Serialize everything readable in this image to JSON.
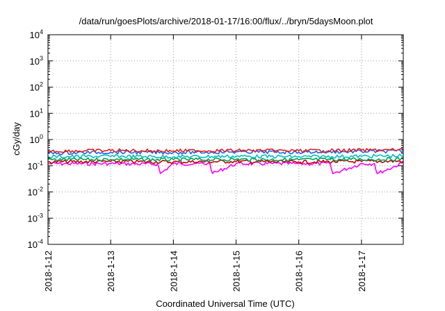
{
  "chart_data": {
    "type": "line",
    "title": "/data/run/goesPlots/archive/2018-01-17/16:00/flux/../bryn/5daysMoon.plot",
    "xlabel": "Coordinated Universal Time (UTC)",
    "ylabel": "cGy/day",
    "yscale": "log",
    "ylim": [
      0.0001,
      10000
    ],
    "xlim": [
      "2018-01-12T00:00",
      "2018-01-17T16:00"
    ],
    "grid": true,
    "legend": "none",
    "y_ticks": [
      {
        "value": 0.0001,
        "base": "10",
        "exp": "-4"
      },
      {
        "value": 0.001,
        "base": "10",
        "exp": "-3"
      },
      {
        "value": 0.01,
        "base": "10",
        "exp": "-2"
      },
      {
        "value": 0.1,
        "base": "10",
        "exp": "-1"
      },
      {
        "value": 1,
        "base": "10",
        "exp": "0"
      },
      {
        "value": 10,
        "base": "10",
        "exp": "1"
      },
      {
        "value": 100,
        "base": "10",
        "exp": "2"
      },
      {
        "value": 1000,
        "base": "10",
        "exp": "3"
      },
      {
        "value": 10000,
        "base": "10",
        "exp": "4"
      }
    ],
    "x_ticks": [
      {
        "value": "2018-01-12",
        "label": "2018-1-12"
      },
      {
        "value": "2018-01-13",
        "label": "2018-1-13"
      },
      {
        "value": "2018-01-14",
        "label": "2018-1-14"
      },
      {
        "value": "2018-01-15",
        "label": "2018-1-15"
      },
      {
        "value": "2018-01-16",
        "label": "2018-1-16"
      },
      {
        "value": "2018-01-17",
        "label": "2018-1-17"
      }
    ],
    "series": [
      {
        "color": "#ff00ff",
        "x": [
          "2018-01-12T00:00",
          "2018-01-13T00:00",
          "2018-01-13T18:00",
          "2018-01-13T19:00",
          "2018-01-14T00:00",
          "2018-01-14T14:00",
          "2018-01-14T15:00",
          "2018-01-15T00:00",
          "2018-01-16T00:00",
          "2018-01-16T12:00",
          "2018-01-16T13:00",
          "2018-01-17T00:00",
          "2018-01-17T05:00",
          "2018-01-17T06:00",
          "2018-01-17T16:00"
        ],
        "values": [
          0.12,
          0.12,
          0.115,
          0.05,
          0.12,
          0.12,
          0.05,
          0.12,
          0.12,
          0.12,
          0.05,
          0.12,
          0.12,
          0.05,
          0.13
        ]
      },
      {
        "color": "#c00000",
        "x": [
          "2018-01-12T00:00",
          "2018-01-13T00:00",
          "2018-01-14T00:00",
          "2018-01-15T00:00",
          "2018-01-16T00:00",
          "2018-01-17T00:00",
          "2018-01-17T16:00"
        ],
        "values": [
          0.14,
          0.145,
          0.14,
          0.145,
          0.14,
          0.145,
          0.15
        ]
      },
      {
        "color": "#00a050",
        "x": [
          "2018-01-12T00:00",
          "2018-01-13T00:00",
          "2018-01-14T00:00",
          "2018-01-15T00:00",
          "2018-01-16T00:00",
          "2018-01-17T00:00",
          "2018-01-17T16:00"
        ],
        "values": [
          0.17,
          0.175,
          0.17,
          0.175,
          0.17,
          0.175,
          0.18
        ]
      },
      {
        "color": "#00c0c0",
        "x": [
          "2018-01-12T00:00",
          "2018-01-13T00:00",
          "2018-01-14T00:00",
          "2018-01-15T00:00",
          "2018-01-16T00:00",
          "2018-01-17T00:00",
          "2018-01-17T16:00"
        ],
        "values": [
          0.22,
          0.23,
          0.22,
          0.23,
          0.22,
          0.23,
          0.24
        ]
      },
      {
        "color": "#2060ff",
        "x": [
          "2018-01-12T00:00",
          "2018-01-13T00:00",
          "2018-01-14T00:00",
          "2018-01-15T00:00",
          "2018-01-16T00:00",
          "2018-01-17T00:00",
          "2018-01-17T16:00"
        ],
        "values": [
          0.3,
          0.33,
          0.32,
          0.34,
          0.33,
          0.35,
          0.36
        ]
      },
      {
        "color": "#e02020",
        "x": [
          "2018-01-12T00:00",
          "2018-01-13T00:00",
          "2018-01-14T00:00",
          "2018-01-15T00:00",
          "2018-01-16T00:00",
          "2018-01-17T00:00",
          "2018-01-17T16:00"
        ],
        "values": [
          0.36,
          0.38,
          0.37,
          0.38,
          0.37,
          0.39,
          0.4
        ]
      }
    ]
  }
}
